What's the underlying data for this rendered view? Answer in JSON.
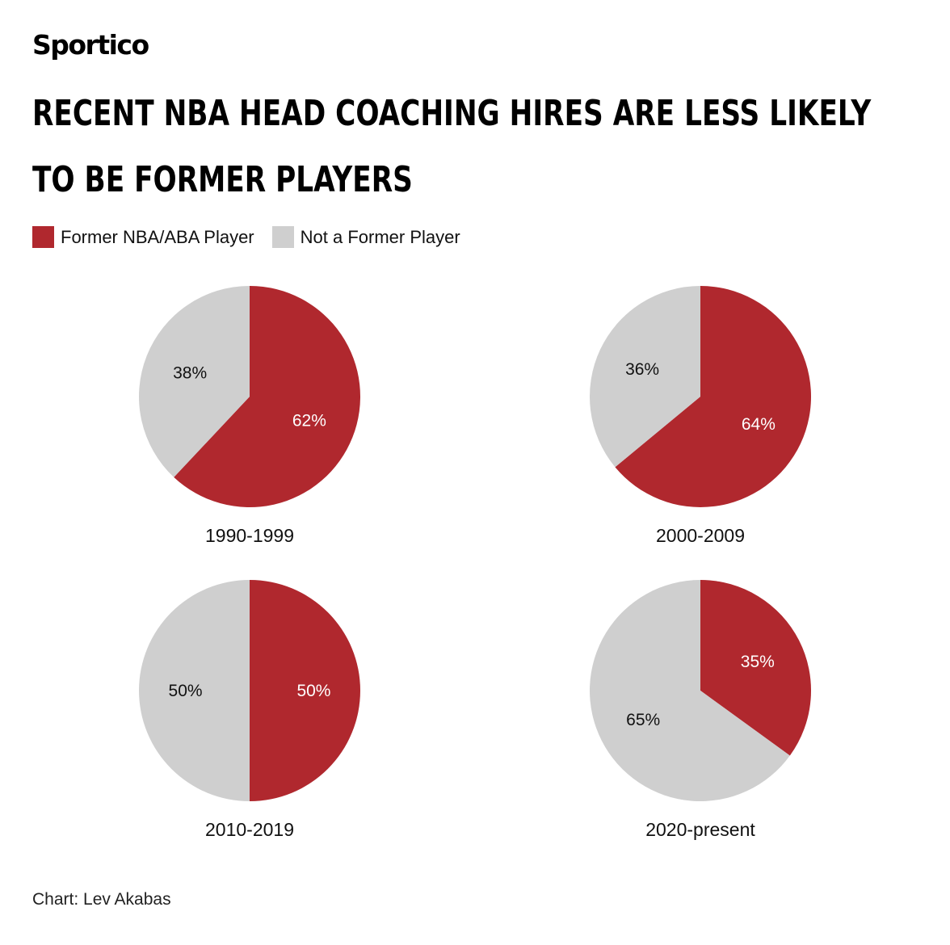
{
  "brand": "Sportico",
  "title_lines": [
    "RECENT NBA HEAD COACHING HIRES ARE LESS LIKELY",
    "TO BE FORMER PLAYERS"
  ],
  "legend": [
    {
      "label": "Former NBA/ABA Player",
      "color": "#b0282e"
    },
    {
      "label": "Not a Former Player",
      "color": "#cfcfcf"
    }
  ],
  "credit": "Chart: Lev Akabas",
  "chart_data": [
    {
      "type": "pie",
      "label": "1990-1999",
      "slices": [
        {
          "name": "Former NBA/ABA Player",
          "value": 62,
          "label": "62%"
        },
        {
          "name": "Not a Former Player",
          "value": 38,
          "label": "38%"
        }
      ]
    },
    {
      "type": "pie",
      "label": "2000-2009",
      "slices": [
        {
          "name": "Former NBA/ABA Player",
          "value": 64,
          "label": "64%"
        },
        {
          "name": "Not a Former Player",
          "value": 36,
          "label": "36%"
        }
      ]
    },
    {
      "type": "pie",
      "label": "2010-2019",
      "slices": [
        {
          "name": "Former NBA/ABA Player",
          "value": 50,
          "label": "50%"
        },
        {
          "name": "Not a Former Player",
          "value": 50,
          "label": "50%"
        }
      ]
    },
    {
      "type": "pie",
      "label": "2020-present",
      "slices": [
        {
          "name": "Former NBA/ABA Player",
          "value": 35,
          "label": "35%"
        },
        {
          "name": "Not a Former Player",
          "value": 65,
          "label": "65%"
        }
      ]
    }
  ]
}
